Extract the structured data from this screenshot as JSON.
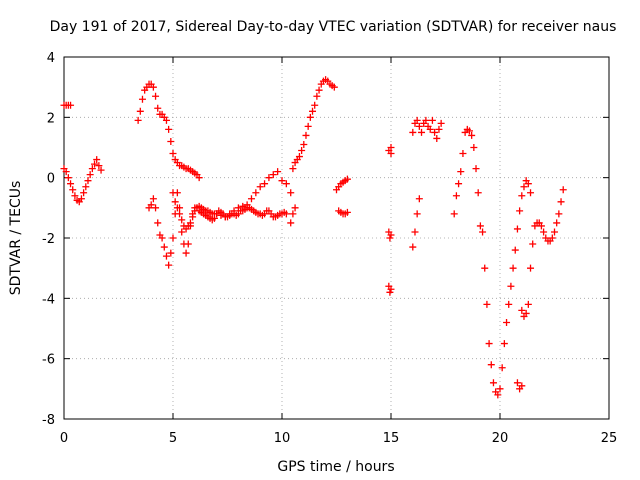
{
  "chart_data": {
    "type": "scatter",
    "title": "Day 191 of 2017, Sidereal Day-to-day VTEC variation (SDTVAR) for receiver naus",
    "xlabel": "GPS time / hours",
    "ylabel": "SDTVAR / TECUs",
    "xlim": [
      0,
      25
    ],
    "ylim": [
      -8,
      4
    ],
    "xticks": [
      "0",
      "5",
      "10",
      "15",
      "20",
      "25"
    ],
    "yticks": [
      "4",
      "2",
      "0",
      "-2",
      "-4",
      "-6",
      "-8"
    ],
    "grid": true,
    "marker": "+",
    "color": "#ff0000",
    "series": [
      {
        "x": [
          0.0,
          0.1,
          0.2,
          0.3
        ],
        "y": [
          2.4,
          2.4,
          2.4,
          2.4
        ]
      },
      {
        "x": [
          0.0,
          0.1,
          0.2,
          0.3,
          0.4,
          0.5,
          0.6,
          0.7,
          0.8,
          0.9,
          1.0,
          1.1,
          1.2,
          1.3,
          1.4,
          1.5,
          1.6,
          1.7
        ],
        "y": [
          0.3,
          0.2,
          0.0,
          -0.2,
          -0.4,
          -0.6,
          -0.75,
          -0.8,
          -0.7,
          -0.5,
          -0.3,
          -0.1,
          0.1,
          0.3,
          0.45,
          0.6,
          0.4,
          0.25
        ]
      },
      {
        "x": [
          3.4,
          3.5,
          3.6,
          3.7,
          3.8,
          3.9,
          4.0,
          4.1,
          4.2,
          4.3,
          4.4,
          4.5,
          4.6,
          4.7,
          4.8,
          4.9,
          5.0,
          5.1,
          5.2,
          5.3,
          5.4,
          5.5,
          5.6,
          5.7,
          5.8,
          5.9,
          6.0,
          6.1,
          6.2
        ],
        "y": [
          1.9,
          2.2,
          2.6,
          2.9,
          3.0,
          3.1,
          3.1,
          3.0,
          2.7,
          2.3,
          2.1,
          2.1,
          2.0,
          1.9,
          1.6,
          1.2,
          0.8,
          0.6,
          0.5,
          0.4,
          0.4,
          0.35,
          0.3,
          0.3,
          0.25,
          0.2,
          0.15,
          0.1,
          0.0
        ]
      },
      {
        "x": [
          3.9,
          4.0,
          4.1,
          4.2,
          4.3,
          4.4,
          4.5,
          4.6,
          4.7,
          4.8,
          4.9,
          5.0,
          5.1,
          5.2,
          5.3,
          5.4,
          5.5,
          5.6,
          5.7,
          5.8,
          5.9,
          6.0,
          6.1,
          6.2,
          6.3,
          6.4,
          6.5,
          6.6,
          6.7,
          6.8,
          6.9,
          7.0,
          7.1,
          7.2,
          7.3,
          7.4,
          7.5,
          7.6,
          7.7,
          7.8,
          7.9,
          8.0,
          8.1,
          8.2,
          8.3,
          8.4,
          8.5,
          8.6,
          8.7,
          8.8,
          8.9,
          9.0,
          9.1,
          9.2,
          9.3,
          9.4,
          9.5,
          9.6,
          9.7,
          9.8,
          9.9,
          10.0,
          10.1,
          10.2
        ],
        "y": [
          -1.0,
          -0.9,
          -0.7,
          -1.0,
          -1.5,
          -1.9,
          -2.0,
          -2.3,
          -2.6,
          -2.9,
          -2.5,
          -2.0,
          -1.2,
          -0.5,
          -1.0,
          -1.8,
          -2.2,
          -2.5,
          -2.2,
          -1.6,
          -1.2,
          -1.0,
          -1.0,
          -1.1,
          -1.15,
          -1.2,
          -1.25,
          -1.3,
          -1.35,
          -1.4,
          -1.35,
          -1.2,
          -1.1,
          -1.15,
          -1.2,
          -1.3,
          -1.3,
          -1.25,
          -1.2,
          -1.2,
          -1.25,
          -1.2,
          -1.1,
          -1.1,
          -1.05,
          -1.0,
          -1.0,
          -1.05,
          -1.1,
          -1.15,
          -1.2,
          -1.2,
          -1.25,
          -1.2,
          -1.1,
          -1.1,
          -1.2,
          -1.3,
          -1.3,
          -1.25,
          -1.2,
          -1.2,
          -1.15,
          -1.2
        ]
      },
      {
        "x": [
          5.0,
          5.1,
          5.2,
          5.3,
          5.4,
          5.5,
          5.6,
          5.7,
          5.8,
          5.9,
          6.0,
          6.1,
          6.2,
          6.3,
          6.4,
          6.5,
          6.6,
          6.7,
          6.8,
          6.9,
          7.0,
          7.2,
          7.4,
          7.6,
          7.8,
          8.0,
          8.2,
          8.4,
          8.6,
          8.8,
          9.0,
          9.2,
          9.4,
          9.6,
          9.8,
          10.0,
          10.2
        ],
        "y": [
          -0.5,
          -0.8,
          -1.0,
          -1.2,
          -1.4,
          -1.6,
          -1.7,
          -1.6,
          -1.5,
          -1.3,
          -1.1,
          -1.0,
          -0.95,
          -1.0,
          -1.05,
          -1.1,
          -1.1,
          -1.15,
          -1.2,
          -1.2,
          -1.2,
          -1.25,
          -1.3,
          -1.2,
          -1.1,
          -1.0,
          -0.95,
          -0.9,
          -0.7,
          -0.5,
          -0.3,
          -0.2,
          0.0,
          0.1,
          0.2,
          -0.1,
          -0.2
        ]
      },
      {
        "x": [
          10.4,
          10.5,
          10.6,
          10.7,
          10.8,
          10.9,
          11.0,
          11.1,
          11.2,
          11.3,
          11.4,
          11.5,
          11.6,
          11.7,
          11.8,
          11.9,
          12.0,
          12.1,
          12.2,
          12.3,
          12.4
        ],
        "y": [
          -0.5,
          0.3,
          0.5,
          0.6,
          0.7,
          0.9,
          1.1,
          1.4,
          1.7,
          2.0,
          2.2,
          2.4,
          2.7,
          2.9,
          3.1,
          3.2,
          3.25,
          3.2,
          3.1,
          3.05,
          3.0
        ]
      },
      {
        "x": [
          10.4,
          10.5,
          10.6
        ],
        "y": [
          -1.5,
          -1.2,
          -1.0
        ]
      },
      {
        "x": [
          12.5,
          12.6,
          12.7,
          12.8,
          12.9,
          13.0
        ],
        "y": [
          -0.4,
          -0.3,
          -0.2,
          -0.15,
          -0.1,
          -0.05
        ]
      },
      {
        "x": [
          12.6,
          12.7,
          12.8,
          12.9,
          13.0
        ],
        "y": [
          -1.1,
          -1.15,
          -1.2,
          -1.2,
          -1.15
        ]
      },
      {
        "x": [
          14.9,
          15.0,
          15.0
        ],
        "y": [
          0.9,
          1.0,
          0.8
        ]
      },
      {
        "x": [
          14.9,
          14.95,
          15.0
        ],
        "y": [
          -1.8,
          -2.0,
          -1.9
        ]
      },
      {
        "x": [
          14.9,
          14.95,
          15.0
        ],
        "y": [
          -3.6,
          -3.8,
          -3.7
        ]
      },
      {
        "x": [
          16.0,
          16.1,
          16.2,
          16.3
        ],
        "y": [
          -2.3,
          -1.8,
          -1.2,
          -0.7
        ]
      },
      {
        "x": [
          16.0,
          16.1,
          16.2,
          16.3,
          16.4,
          16.5,
          16.6,
          16.7,
          16.8,
          16.9,
          17.0,
          17.1,
          17.2,
          17.3
        ],
        "y": [
          1.5,
          1.8,
          1.9,
          1.7,
          1.5,
          1.8,
          1.9,
          1.7,
          1.6,
          1.9,
          1.5,
          1.3,
          1.6,
          1.8
        ]
      },
      {
        "x": [
          17.9,
          18.0,
          18.1,
          18.2,
          18.3,
          18.4,
          18.5,
          18.6,
          18.7,
          18.8,
          18.9,
          19.0,
          19.1,
          19.2,
          19.3,
          19.4,
          19.5,
          19.6,
          19.7,
          19.8,
          19.9,
          20.0,
          20.1,
          20.2,
          20.3,
          20.4,
          20.5,
          20.6,
          20.7,
          20.8,
          20.9,
          21.0,
          21.1,
          21.2,
          21.3,
          21.4
        ],
        "y": [
          -1.2,
          -0.6,
          -0.2,
          0.2,
          0.8,
          1.5,
          1.6,
          1.55,
          1.4,
          1.0,
          0.3,
          -0.5,
          -1.6,
          -1.8,
          -3.0,
          -4.2,
          -5.5,
          -6.2,
          -6.8,
          -7.1,
          -7.2,
          -7.0,
          -6.3,
          -5.5,
          -4.8,
          -4.2,
          -3.6,
          -3.0,
          -2.4,
          -1.7,
          -1.1,
          -0.6,
          -0.3,
          -0.1,
          -0.2,
          -0.5
        ]
      },
      {
        "x": [
          20.8,
          20.9,
          21.0
        ],
        "y": [
          -6.8,
          -7.0,
          -6.9
        ]
      },
      {
        "x": [
          21.0,
          21.1,
          21.2,
          21.3,
          21.4,
          21.5,
          21.6,
          21.7,
          21.8,
          21.9,
          22.0,
          22.1,
          22.2,
          22.3,
          22.4,
          22.5,
          22.6,
          22.7,
          22.8,
          22.9
        ],
        "y": [
          -4.4,
          -4.6,
          -4.5,
          -4.2,
          -3.0,
          -2.2,
          -1.6,
          -1.5,
          -1.5,
          -1.6,
          -1.8,
          -2.0,
          -2.1,
          -2.1,
          -2.0,
          -1.8,
          -1.5,
          -1.2,
          -0.8,
          -0.4
        ]
      }
    ]
  }
}
